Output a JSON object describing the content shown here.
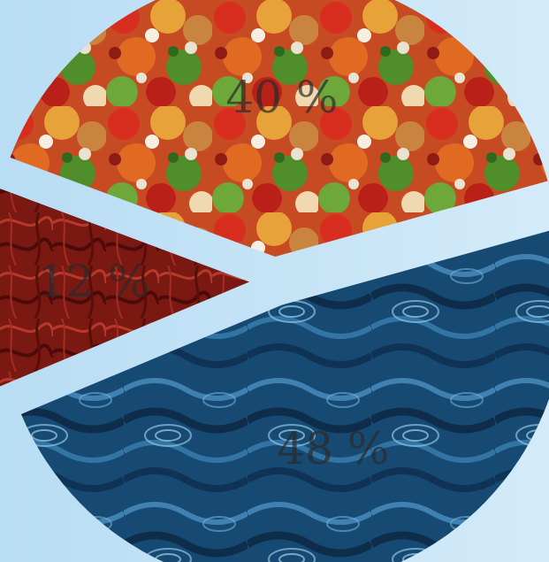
{
  "chart_data": {
    "type": "pie",
    "exploded": true,
    "title": "",
    "slices": [
      {
        "label": "40 %",
        "value": 40,
        "texture": "fruits-and-vegetables",
        "colors": [
          "#c0281c",
          "#e8742a",
          "#5f9a2e",
          "#d8b06a",
          "#f2d6a8"
        ]
      },
      {
        "label": "48 %",
        "value": 48,
        "texture": "water-ripples",
        "colors": [
          "#0c2a45",
          "#1b5580",
          "#3f86b6",
          "#7ab8dd"
        ]
      },
      {
        "label": "12 %",
        "value": 12,
        "texture": "red-vessels",
        "colors": [
          "#4d0a08",
          "#8a1d16",
          "#b73a2c"
        ]
      }
    ],
    "legend": "none"
  }
}
